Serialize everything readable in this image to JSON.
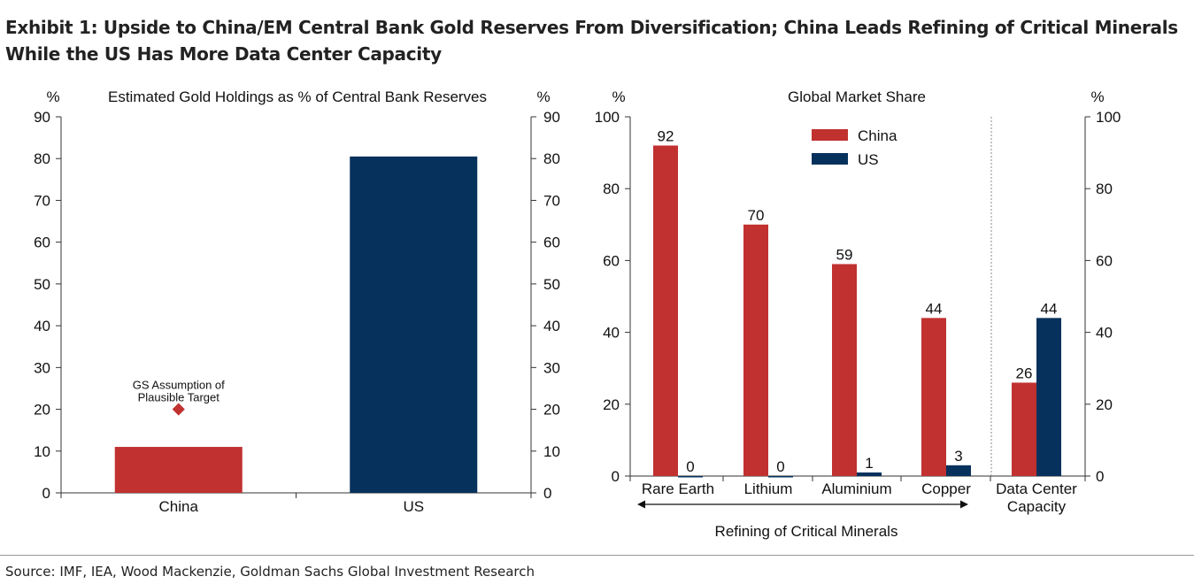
{
  "exhibit": {
    "title_line1": "Exhibit 1: Upside to China/EM Central Bank Gold Reserves From Diversification; China Leads Refining of Critical Minerals",
    "title_line2": "While the US Has More Data Center Capacity",
    "source": "Source: IMF, IEA, Wood Mackenzie, Goldman Sachs Global Investment Research"
  },
  "colors": {
    "china": "#c0312f",
    "us": "#06315c",
    "axis": "#333333"
  },
  "chart_data": [
    {
      "type": "bar",
      "title": "Estimated Gold Holdings as % of Central Bank Reserves",
      "ylabel_left": "%",
      "ylabel_right": "%",
      "ylim": [
        0,
        90
      ],
      "yticks": [
        0,
        10,
        20,
        30,
        40,
        50,
        60,
        70,
        80,
        90
      ],
      "categories": [
        "China",
        "US"
      ],
      "values": [
        11,
        80.5
      ],
      "bar_colors": [
        "china",
        "us"
      ],
      "annotation": {
        "label_line1": "GS Assumption of",
        "label_line2": "Plausible Target",
        "category": "China",
        "value": 20,
        "marker": "diamond"
      }
    },
    {
      "type": "bar",
      "title": "Global Market Share",
      "ylabel_left": "%",
      "ylabel_right": "%",
      "ylim": [
        0,
        100
      ],
      "yticks": [
        0,
        20,
        40,
        60,
        80,
        100
      ],
      "categories": [
        "Rare Earth",
        "Lithium",
        "Aluminium",
        "Copper",
        "Data Center Capacity"
      ],
      "category_lines": [
        [
          "Rare Earth"
        ],
        [
          "Lithium"
        ],
        [
          "Aluminium"
        ],
        [
          "Copper"
        ],
        [
          "Data Center",
          "Capacity"
        ]
      ],
      "series": [
        {
          "name": "China",
          "color": "china",
          "values": [
            92,
            70,
            59,
            44,
            26
          ]
        },
        {
          "name": "US",
          "color": "us",
          "values": [
            0,
            0,
            1,
            3,
            44
          ]
        }
      ],
      "group_label": "Refining of Critical Minerals",
      "legend": "top-center"
    }
  ]
}
